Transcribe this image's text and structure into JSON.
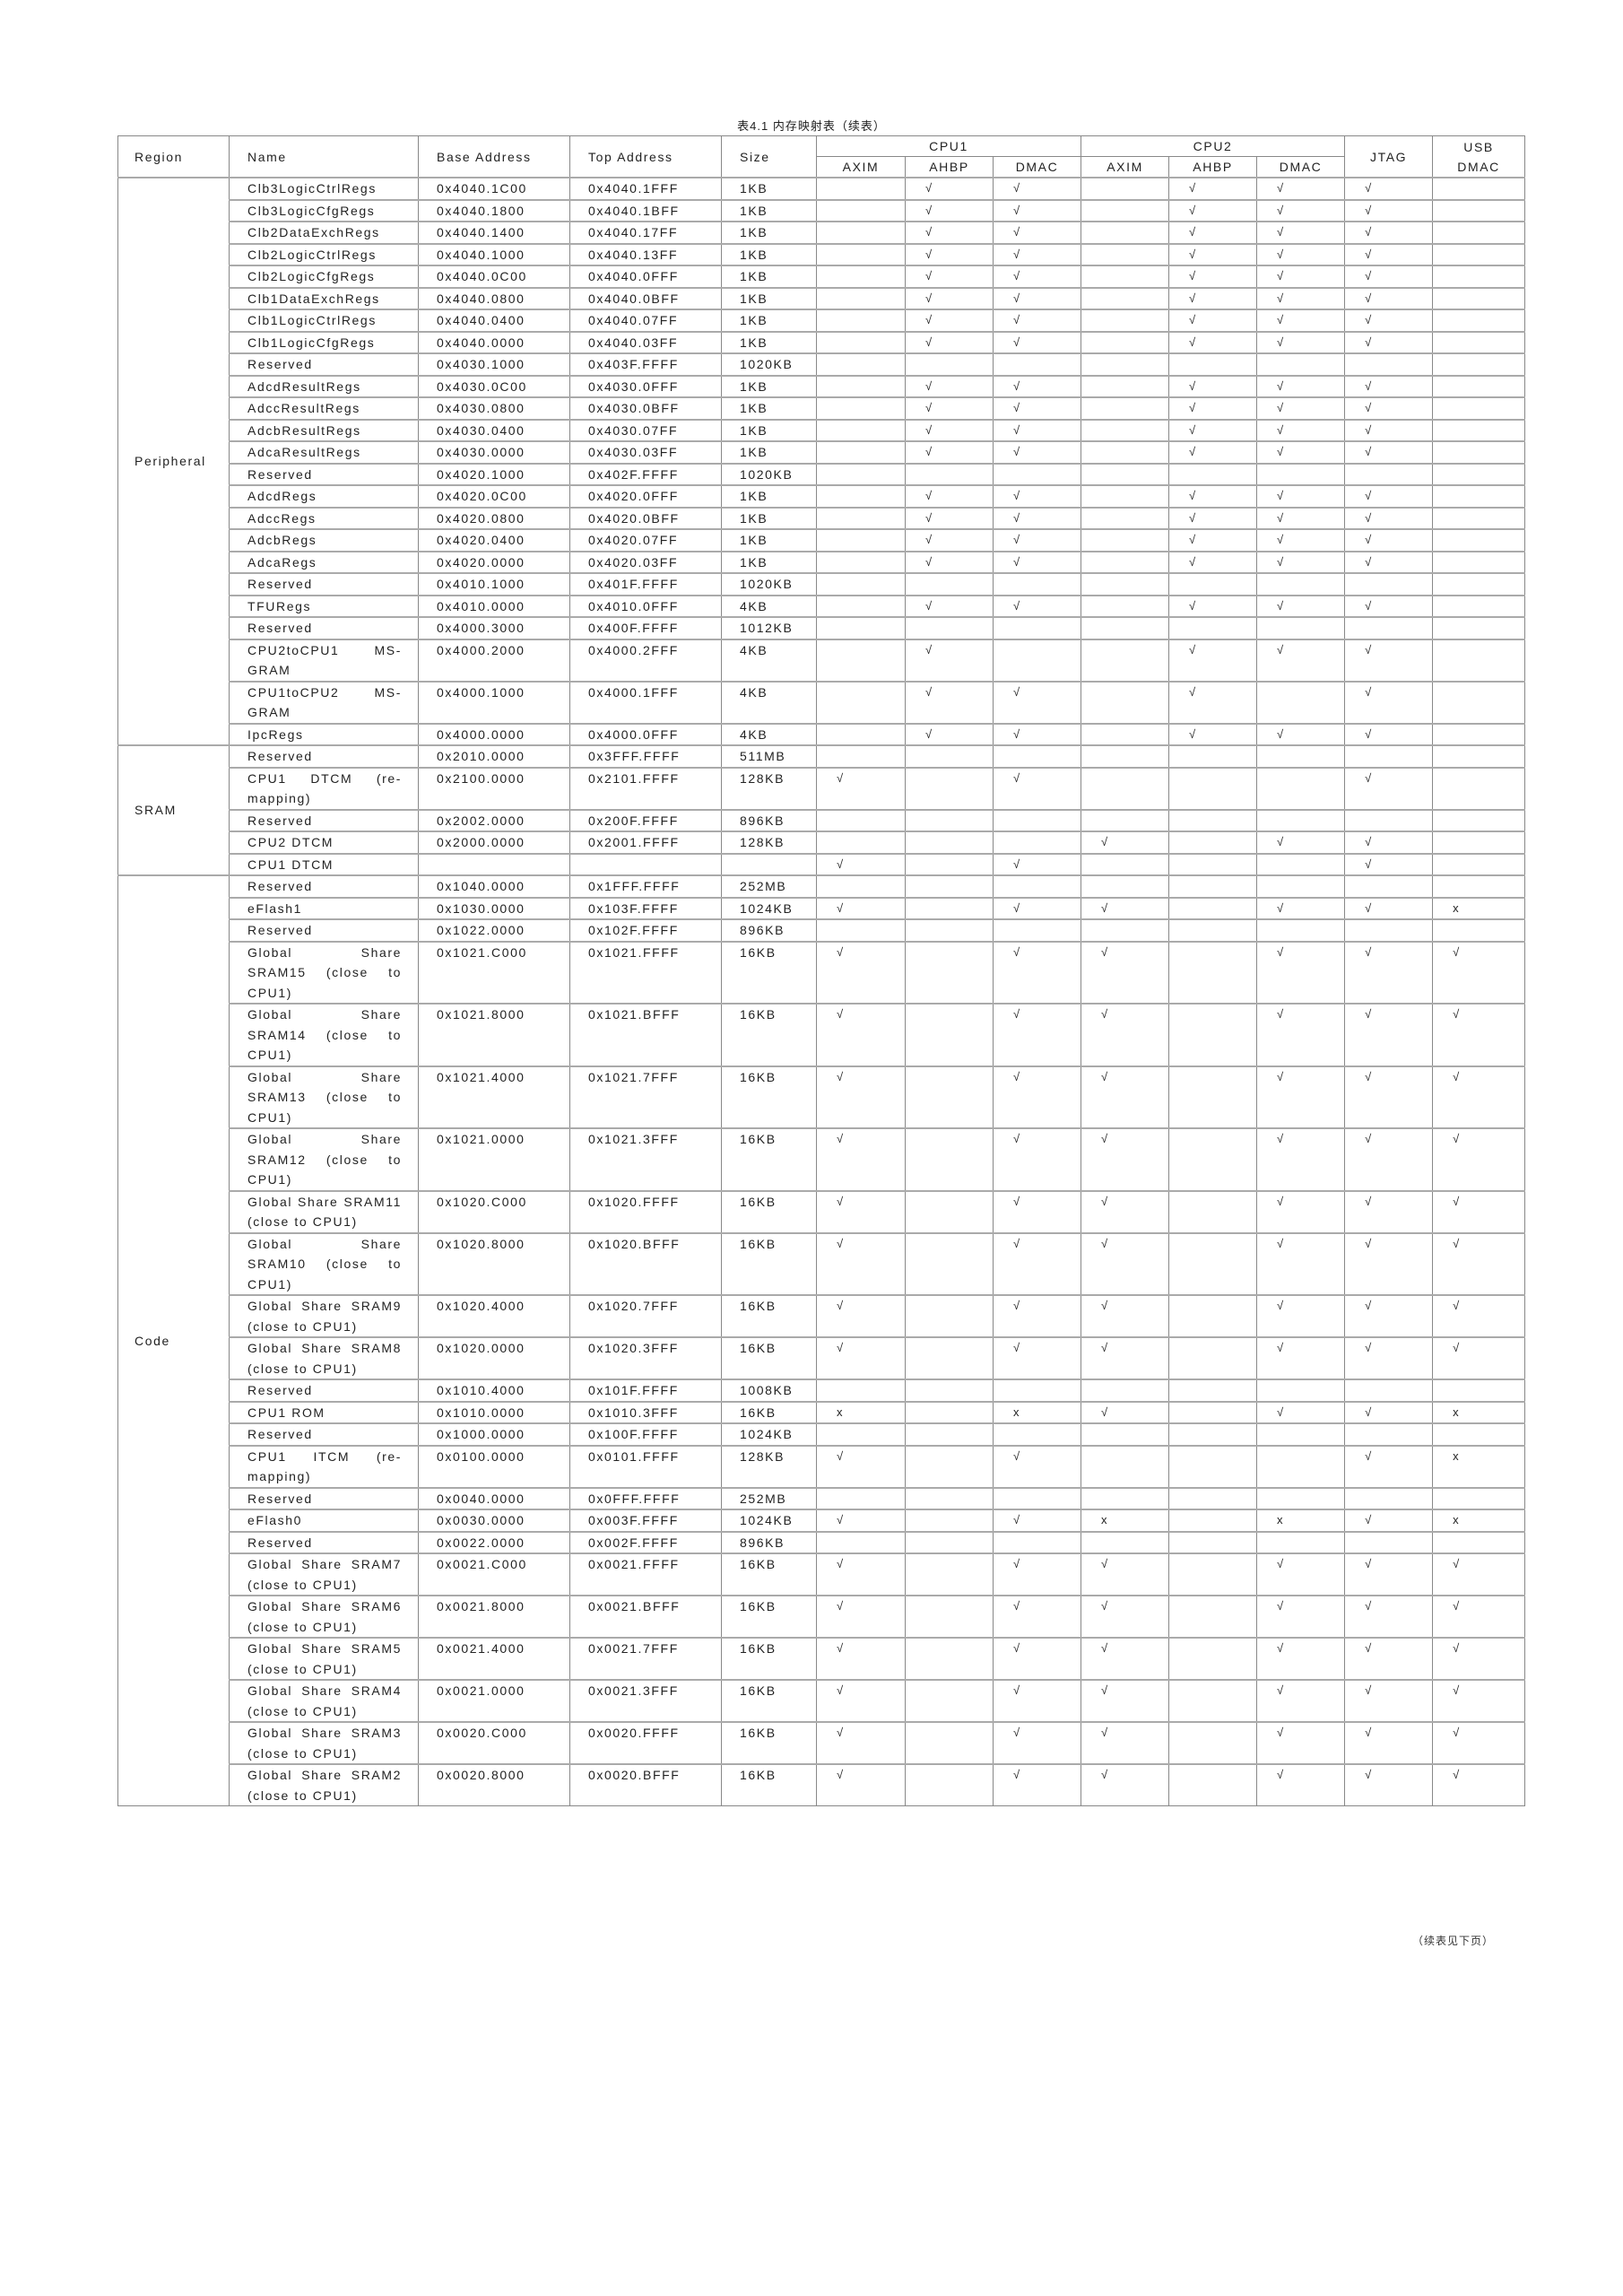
{
  "title": "表4.1 内存映射表（续表）",
  "footer": "（续表见下页）",
  "headers": {
    "region": "Region",
    "name": "Name",
    "base": "Base Address",
    "top": "Top Address",
    "size": "Size",
    "cpu1": "CPU1",
    "cpu2": "CPU2",
    "jtag": "JTAG",
    "usb": "USB DMAC",
    "sub": [
      "AXIM",
      "AHBP",
      "DMAC",
      "AXIM",
      "AHBP",
      "DMAC"
    ]
  },
  "access_columns": [
    "CPU1 AXIM",
    "CPU1 AHBP",
    "CPU1 DMAC",
    "CPU2 AXIM",
    "CPU2 AHBP",
    "CPU2 DMAC",
    "JTAG",
    "USB DMAC"
  ],
  "groups": [
    {
      "region": "Peripheral",
      "rows": [
        {
          "name": "Clb3LogicCtrlRegs",
          "base": "0x4040.1C00",
          "top": "0x4040.1FFF",
          "size": "1KB",
          "access": [
            "",
            "√",
            "√",
            "",
            "√",
            "√",
            "√",
            ""
          ]
        },
        {
          "name": "Clb3LogicCfgRegs",
          "base": "0x4040.1800",
          "top": "0x4040.1BFF",
          "size": "1KB",
          "access": [
            "",
            "√",
            "√",
            "",
            "√",
            "√",
            "√",
            ""
          ]
        },
        {
          "name": "Clb2DataExchRegs",
          "base": "0x4040.1400",
          "top": "0x4040.17FF",
          "size": "1KB",
          "access": [
            "",
            "√",
            "√",
            "",
            "√",
            "√",
            "√",
            ""
          ]
        },
        {
          "name": "Clb2LogicCtrlRegs",
          "base": "0x4040.1000",
          "top": "0x4040.13FF",
          "size": "1KB",
          "access": [
            "",
            "√",
            "√",
            "",
            "√",
            "√",
            "√",
            ""
          ]
        },
        {
          "name": "Clb2LogicCfgRegs",
          "base": "0x4040.0C00",
          "top": "0x4040.0FFF",
          "size": "1KB",
          "access": [
            "",
            "√",
            "√",
            "",
            "√",
            "√",
            "√",
            ""
          ]
        },
        {
          "name": "Clb1DataExchRegs",
          "base": "0x4040.0800",
          "top": "0x4040.0BFF",
          "size": "1KB",
          "access": [
            "",
            "√",
            "√",
            "",
            "√",
            "√",
            "√",
            ""
          ]
        },
        {
          "name": "Clb1LogicCtrlRegs",
          "base": "0x4040.0400",
          "top": "0x4040.07FF",
          "size": "1KB",
          "access": [
            "",
            "√",
            "√",
            "",
            "√",
            "√",
            "√",
            ""
          ]
        },
        {
          "name": "Clb1LogicCfgRegs",
          "base": "0x4040.0000",
          "top": "0x4040.03FF",
          "size": "1KB",
          "access": [
            "",
            "√",
            "√",
            "",
            "√",
            "√",
            "√",
            ""
          ]
        },
        {
          "name": "Reserved",
          "base": "0x4030.1000",
          "top": "0x403F.FFFF",
          "size": "1020KB",
          "access": [
            "",
            "",
            "",
            "",
            "",
            "",
            "",
            ""
          ]
        },
        {
          "name": "AdcdResultRegs",
          "base": "0x4030.0C00",
          "top": "0x4030.0FFF",
          "size": "1KB",
          "access": [
            "",
            "√",
            "√",
            "",
            "√",
            "√",
            "√",
            ""
          ]
        },
        {
          "name": "AdccResultRegs",
          "base": "0x4030.0800",
          "top": "0x4030.0BFF",
          "size": "1KB",
          "access": [
            "",
            "√",
            "√",
            "",
            "√",
            "√",
            "√",
            ""
          ]
        },
        {
          "name": "AdcbResultRegs",
          "base": "0x4030.0400",
          "top": "0x4030.07FF",
          "size": "1KB",
          "access": [
            "",
            "√",
            "√",
            "",
            "√",
            "√",
            "√",
            ""
          ]
        },
        {
          "name": "AdcaResultRegs",
          "base": "0x4030.0000",
          "top": "0x4030.03FF",
          "size": "1KB",
          "access": [
            "",
            "√",
            "√",
            "",
            "√",
            "√",
            "√",
            ""
          ]
        },
        {
          "name": "Reserved",
          "base": "0x4020.1000",
          "top": "0x402F.FFFF",
          "size": "1020KB",
          "access": [
            "",
            "",
            "",
            "",
            "",
            "",
            "",
            ""
          ]
        },
        {
          "name": "AdcdRegs",
          "base": "0x4020.0C00",
          "top": "0x4020.0FFF",
          "size": "1KB",
          "access": [
            "",
            "√",
            "√",
            "",
            "√",
            "√",
            "√",
            ""
          ]
        },
        {
          "name": "AdccRegs",
          "base": "0x4020.0800",
          "top": "0x4020.0BFF",
          "size": "1KB",
          "access": [
            "",
            "√",
            "√",
            "",
            "√",
            "√",
            "√",
            ""
          ]
        },
        {
          "name": "AdcbRegs",
          "base": "0x4020.0400",
          "top": "0x4020.07FF",
          "size": "1KB",
          "access": [
            "",
            "√",
            "√",
            "",
            "√",
            "√",
            "√",
            ""
          ]
        },
        {
          "name": "AdcaRegs",
          "base": "0x4020.0000",
          "top": "0x4020.03FF",
          "size": "1KB",
          "access": [
            "",
            "√",
            "√",
            "",
            "√",
            "√",
            "√",
            ""
          ]
        },
        {
          "name": "Reserved",
          "base": "0x4010.1000",
          "top": "0x401F.FFFF",
          "size": "1020KB",
          "access": [
            "",
            "",
            "",
            "",
            "",
            "",
            "",
            ""
          ]
        },
        {
          "name": "TFURegs",
          "base": "0x4010.0000",
          "top": "0x4010.0FFF",
          "size": "4KB",
          "access": [
            "",
            "√",
            "√",
            "",
            "√",
            "√",
            "√",
            ""
          ]
        },
        {
          "name": "Reserved",
          "base": "0x4000.3000",
          "top": "0x400F.FFFF",
          "size": "1012KB",
          "access": [
            "",
            "",
            "",
            "",
            "",
            "",
            "",
            ""
          ]
        },
        {
          "name": "CPU2toCPU1 MS-GRAM",
          "base": "0x4000.2000",
          "top": "0x4000.2FFF",
          "size": "4KB",
          "access": [
            "",
            "√",
            "",
            "",
            "√",
            "√",
            "√",
            ""
          ]
        },
        {
          "name": "CPU1toCPU2 MS-GRAM",
          "base": "0x4000.1000",
          "top": "0x4000.1FFF",
          "size": "4KB",
          "access": [
            "",
            "√",
            "√",
            "",
            "√",
            "",
            "√",
            ""
          ]
        },
        {
          "name": "IpcRegs",
          "base": "0x4000.0000",
          "top": "0x4000.0FFF",
          "size": "4KB",
          "access": [
            "",
            "√",
            "√",
            "",
            "√",
            "√",
            "√",
            ""
          ]
        }
      ]
    },
    {
      "region": "SRAM",
      "rows": [
        {
          "name": "Reserved",
          "base": "0x2010.0000",
          "top": "0x3FFF.FFFF",
          "size": "511MB",
          "access": [
            "",
            "",
            "",
            "",
            "",
            "",
            "",
            ""
          ]
        },
        {
          "name": "CPU1 DTCM (re-mapping)",
          "base": "0x2100.0000",
          "top": "0x2101.FFFF",
          "size": "128KB",
          "access": [
            "√",
            "",
            "√",
            "",
            "",
            "",
            "√",
            ""
          ]
        },
        {
          "name": "Reserved",
          "base": "0x2002.0000",
          "top": "0x200F.FFFF",
          "size": "896KB",
          "access": [
            "",
            "",
            "",
            "",
            "",
            "",
            "",
            ""
          ]
        },
        {
          "name": "CPU2 DTCM",
          "base": "0x2000.0000",
          "top": "0x2001.FFFF",
          "size": "128KB",
          "access": [
            "",
            "",
            "",
            "√",
            "",
            "√",
            "√",
            ""
          ]
        },
        {
          "name": "CPU1 DTCM",
          "base": "",
          "top": "",
          "size": "",
          "access": [
            "√",
            "",
            "√",
            "",
            "",
            "",
            "√",
            ""
          ]
        }
      ]
    },
    {
      "region": "Code",
      "rows": [
        {
          "name": "Reserved",
          "base": "0x1040.0000",
          "top": "0x1FFF.FFFF",
          "size": "252MB",
          "access": [
            "",
            "",
            "",
            "",
            "",
            "",
            "",
            ""
          ]
        },
        {
          "name": "eFlash1",
          "base": "0x1030.0000",
          "top": "0x103F.FFFF",
          "size": "1024KB",
          "access": [
            "√",
            "",
            "√",
            "√",
            "",
            "√",
            "√",
            "x"
          ]
        },
        {
          "name": "Reserved",
          "base": "0x1022.0000",
          "top": "0x102F.FFFF",
          "size": "896KB",
          "access": [
            "",
            "",
            "",
            "",
            "",
            "",
            "",
            ""
          ]
        },
        {
          "name": "Global Share SRAM15 (close to CPU1)",
          "base": "0x1021.C000",
          "top": "0x1021.FFFF",
          "size": "16KB",
          "access": [
            "√",
            "",
            "√",
            "√",
            "",
            "√",
            "√",
            "√"
          ]
        },
        {
          "name": "Global Share SRAM14 (close to CPU1)",
          "base": "0x1021.8000",
          "top": "0x1021.BFFF",
          "size": "16KB",
          "access": [
            "√",
            "",
            "√",
            "√",
            "",
            "√",
            "√",
            "√"
          ]
        },
        {
          "name": "Global Share SRAM13 (close to CPU1)",
          "base": "0x1021.4000",
          "top": "0x1021.7FFF",
          "size": "16KB",
          "access": [
            "√",
            "",
            "√",
            "√",
            "",
            "√",
            "√",
            "√"
          ]
        },
        {
          "name": "Global Share SRAM12 (close to CPU1)",
          "base": "0x1021.0000",
          "top": "0x1021.3FFF",
          "size": "16KB",
          "access": [
            "√",
            "",
            "√",
            "√",
            "",
            "√",
            "√",
            "√"
          ]
        },
        {
          "name": "Global Share SRAM11 (close to CPU1)",
          "base": "0x1020.C000",
          "top": "0x1020.FFFF",
          "size": "16KB",
          "access": [
            "√",
            "",
            "√",
            "√",
            "",
            "√",
            "√",
            "√"
          ]
        },
        {
          "name": "Global Share SRAM10 (close to CPU1)",
          "base": "0x1020.8000",
          "top": "0x1020.BFFF",
          "size": "16KB",
          "access": [
            "√",
            "",
            "√",
            "√",
            "",
            "√",
            "√",
            "√"
          ]
        },
        {
          "name": "Global Share SRAM9 (close to CPU1)",
          "base": "0x1020.4000",
          "top": "0x1020.7FFF",
          "size": "16KB",
          "access": [
            "√",
            "",
            "√",
            "√",
            "",
            "√",
            "√",
            "√"
          ]
        },
        {
          "name": "Global Share SRAM8 (close to CPU1)",
          "base": "0x1020.0000",
          "top": "0x1020.3FFF",
          "size": "16KB",
          "access": [
            "√",
            "",
            "√",
            "√",
            "",
            "√",
            "√",
            "√"
          ]
        },
        {
          "name": "Reserved",
          "base": "0x1010.4000",
          "top": "0x101F.FFFF",
          "size": "1008KB",
          "access": [
            "",
            "",
            "",
            "",
            "",
            "",
            "",
            ""
          ]
        },
        {
          "name": "CPU1 ROM",
          "base": "0x1010.0000",
          "top": "0x1010.3FFF",
          "size": "16KB",
          "access": [
            "x",
            "",
            "x",
            "√",
            "",
            "√",
            "√",
            "x"
          ]
        },
        {
          "name": "Reserved",
          "base": "0x1000.0000",
          "top": "0x100F.FFFF",
          "size": "1024KB",
          "access": [
            "",
            "",
            "",
            "",
            "",
            "",
            "",
            ""
          ]
        },
        {
          "name": "CPU1 ITCM (re-mapping)",
          "base": "0x0100.0000",
          "top": "0x0101.FFFF",
          "size": "128KB",
          "access": [
            "√",
            "",
            "√",
            "",
            "",
            "",
            "√",
            "x"
          ]
        },
        {
          "name": "Reserved",
          "base": "0x0040.0000",
          "top": "0x0FFF.FFFF",
          "size": "252MB",
          "access": [
            "",
            "",
            "",
            "",
            "",
            "",
            "",
            ""
          ]
        },
        {
          "name": "eFlash0",
          "base": "0x0030.0000",
          "top": "0x003F.FFFF",
          "size": "1024KB",
          "access": [
            "√",
            "",
            "√",
            "x",
            "",
            "x",
            "√",
            "x"
          ]
        },
        {
          "name": "Reserved",
          "base": "0x0022.0000",
          "top": "0x002F.FFFF",
          "size": "896KB",
          "access": [
            "",
            "",
            "",
            "",
            "",
            "",
            "",
            ""
          ]
        },
        {
          "name": "Global Share SRAM7 (close to CPU1)",
          "base": "0x0021.C000",
          "top": "0x0021.FFFF",
          "size": "16KB",
          "access": [
            "√",
            "",
            "√",
            "√",
            "",
            "√",
            "√",
            "√"
          ]
        },
        {
          "name": "Global Share SRAM6 (close to CPU1)",
          "base": "0x0021.8000",
          "top": "0x0021.BFFF",
          "size": "16KB",
          "access": [
            "√",
            "",
            "√",
            "√",
            "",
            "√",
            "√",
            "√"
          ]
        },
        {
          "name": "Global Share SRAM5 (close to CPU1)",
          "base": "0x0021.4000",
          "top": "0x0021.7FFF",
          "size": "16KB",
          "access": [
            "√",
            "",
            "√",
            "√",
            "",
            "√",
            "√",
            "√"
          ]
        },
        {
          "name": "Global Share SRAM4 (close to CPU1)",
          "base": "0x0021.0000",
          "top": "0x0021.3FFF",
          "size": "16KB",
          "access": [
            "√",
            "",
            "√",
            "√",
            "",
            "√",
            "√",
            "√"
          ]
        },
        {
          "name": "Global Share SRAM3 (close to CPU1)",
          "base": "0x0020.C000",
          "top": "0x0020.FFFF",
          "size": "16KB",
          "access": [
            "√",
            "",
            "√",
            "√",
            "",
            "√",
            "√",
            "√"
          ]
        },
        {
          "name": "Global Share SRAM2 (close to CPU1)",
          "base": "0x0020.8000",
          "top": "0x0020.BFFF",
          "size": "16KB",
          "access": [
            "√",
            "",
            "√",
            "√",
            "",
            "√",
            "√",
            "√"
          ]
        }
      ]
    }
  ]
}
